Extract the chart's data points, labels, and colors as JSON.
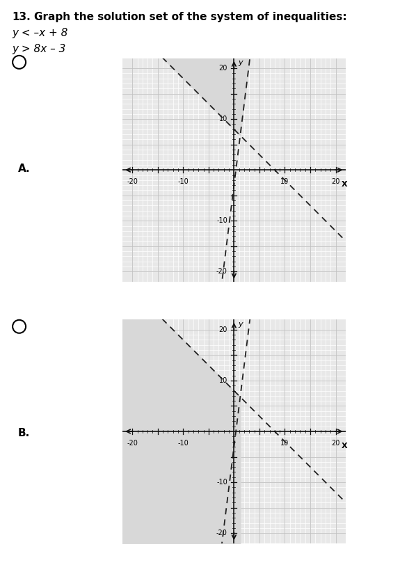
{
  "title_num": "13.",
  "title_text": "  Graph the solution set of the system of inequalities:",
  "ineq1": "y < –x + 8",
  "ineq2": "y > 8x – 3",
  "label_A": "A.",
  "label_B": "B.",
  "xmin": -22,
  "xmax": 22,
  "ymin": -22,
  "ymax": 22,
  "grid_bg": "#e8e8e8",
  "shade_color": "#d8d8d8",
  "line_color": "#222222",
  "axis_color": "#111111",
  "line_width": 1.3,
  "font_size_label": 8,
  "font_size_tick": 7
}
